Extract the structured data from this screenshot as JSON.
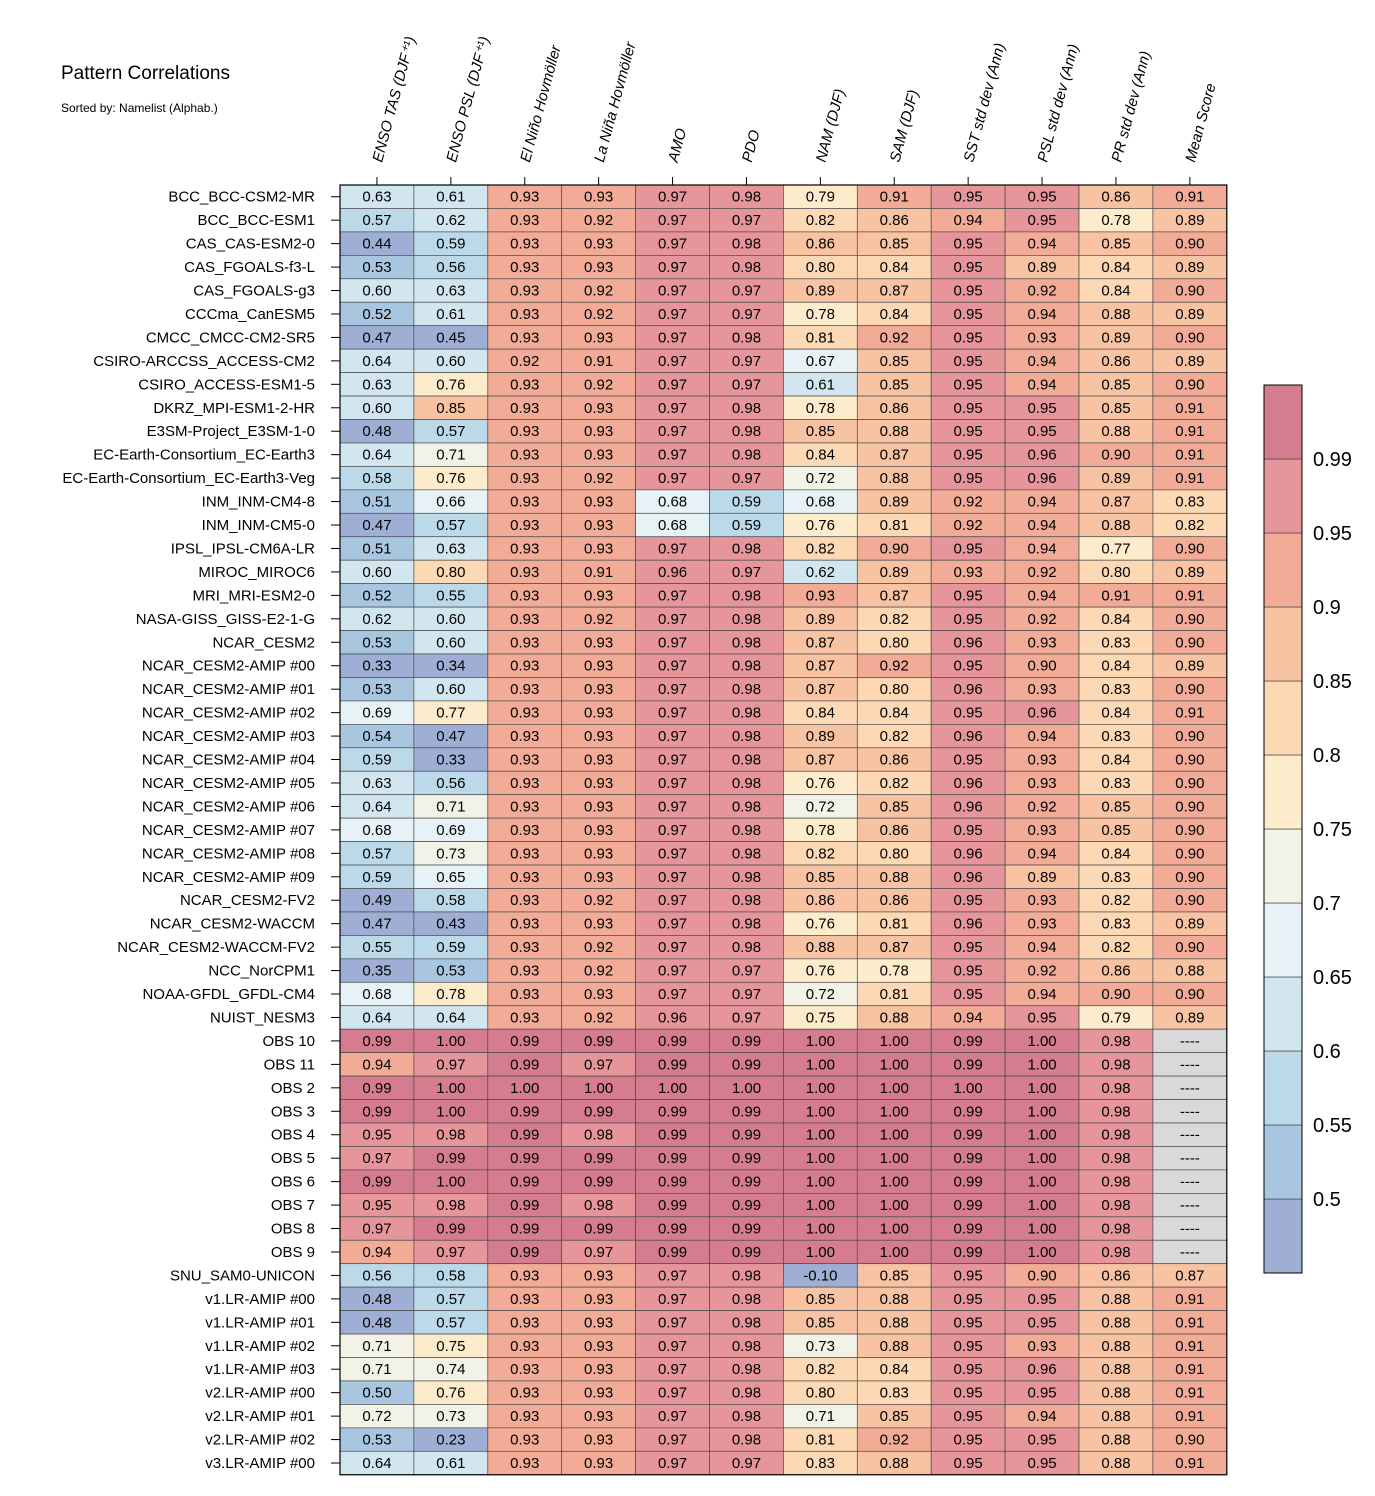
{
  "chart_data": {
    "type": "heatmap",
    "title": "Pattern Correlations",
    "subtitle": "Sorted by: Namelist (Alphab.)",
    "columns": [
      "ENSO TAS (DJF⁺¹)",
      "ENSO PSL (DJF⁺¹)",
      "El Niño Hovmöller",
      "La Niña Hovmöller",
      "AMO",
      "PDO",
      "NAM (DJF)",
      "SAM (DJF)",
      "SST std dev (Ann)",
      "PSL std dev (Ann)",
      "PR std dev (Ann)",
      "Mean Score"
    ],
    "rows": [
      "BCC_BCC-CSM2-MR",
      "BCC_BCC-ESM1",
      "CAS_CAS-ESM2-0",
      "CAS_FGOALS-f3-L",
      "CAS_FGOALS-g3",
      "CCCma_CanESM5",
      "CMCC_CMCC-CM2-SR5",
      "CSIRO-ARCCSS_ACCESS-CM2",
      "CSIRO_ACCESS-ESM1-5",
      "DKRZ_MPI-ESM1-2-HR",
      "E3SM-Project_E3SM-1-0",
      "EC-Earth-Consortium_EC-Earth3",
      "EC-Earth-Consortium_EC-Earth3-Veg",
      "INM_INM-CM4-8",
      "INM_INM-CM5-0",
      "IPSL_IPSL-CM6A-LR",
      "MIROC_MIROC6",
      "MRI_MRI-ESM2-0",
      "NASA-GISS_GISS-E2-1-G",
      "NCAR_CESM2",
      "NCAR_CESM2-AMIP  #00",
      "NCAR_CESM2-AMIP  #01",
      "NCAR_CESM2-AMIP  #02",
      "NCAR_CESM2-AMIP  #03",
      "NCAR_CESM2-AMIP  #04",
      "NCAR_CESM2-AMIP  #05",
      "NCAR_CESM2-AMIP  #06",
      "NCAR_CESM2-AMIP  #07",
      "NCAR_CESM2-AMIP  #08",
      "NCAR_CESM2-AMIP  #09",
      "NCAR_CESM2-FV2",
      "NCAR_CESM2-WACCM",
      "NCAR_CESM2-WACCM-FV2",
      "NCC_NorCPM1",
      "NOAA-GFDL_GFDL-CM4",
      "NUIST_NESM3",
      "OBS 10",
      "OBS 11",
      "OBS 2",
      "OBS 3",
      "OBS 4",
      "OBS 5",
      "OBS 6",
      "OBS 7",
      "OBS 8",
      "OBS 9",
      "SNU_SAM0-UNICON",
      "v1.LR-AMIP  #00",
      "v1.LR-AMIP  #01",
      "v1.LR-AMIP  #02",
      "v1.LR-AMIP  #03",
      "v2.LR-AMIP  #00",
      "v2.LR-AMIP  #01",
      "v2.LR-AMIP  #02",
      "v3.LR-AMIP  #00"
    ],
    "values": [
      [
        "0.63",
        "0.61",
        "0.93",
        "0.93",
        "0.97",
        "0.98",
        "0.79",
        "0.91",
        "0.95",
        "0.95",
        "0.86",
        "0.91"
      ],
      [
        "0.57",
        "0.62",
        "0.93",
        "0.92",
        "0.97",
        "0.97",
        "0.82",
        "0.86",
        "0.94",
        "0.95",
        "0.78",
        "0.89"
      ],
      [
        "0.44",
        "0.59",
        "0.93",
        "0.93",
        "0.97",
        "0.98",
        "0.86",
        "0.85",
        "0.95",
        "0.94",
        "0.85",
        "0.90"
      ],
      [
        "0.53",
        "0.56",
        "0.93",
        "0.93",
        "0.97",
        "0.98",
        "0.80",
        "0.84",
        "0.95",
        "0.89",
        "0.84",
        "0.89"
      ],
      [
        "0.60",
        "0.63",
        "0.93",
        "0.92",
        "0.97",
        "0.97",
        "0.89",
        "0.87",
        "0.95",
        "0.92",
        "0.84",
        "0.90"
      ],
      [
        "0.52",
        "0.61",
        "0.93",
        "0.92",
        "0.97",
        "0.97",
        "0.78",
        "0.84",
        "0.95",
        "0.94",
        "0.88",
        "0.89"
      ],
      [
        "0.47",
        "0.45",
        "0.93",
        "0.93",
        "0.97",
        "0.98",
        "0.81",
        "0.92",
        "0.95",
        "0.93",
        "0.89",
        "0.90"
      ],
      [
        "0.64",
        "0.60",
        "0.92",
        "0.91",
        "0.97",
        "0.97",
        "0.67",
        "0.85",
        "0.95",
        "0.94",
        "0.86",
        "0.89"
      ],
      [
        "0.63",
        "0.76",
        "0.93",
        "0.92",
        "0.97",
        "0.97",
        "0.61",
        "0.85",
        "0.95",
        "0.94",
        "0.85",
        "0.90"
      ],
      [
        "0.60",
        "0.85",
        "0.93",
        "0.93",
        "0.97",
        "0.98",
        "0.78",
        "0.86",
        "0.95",
        "0.95",
        "0.85",
        "0.91"
      ],
      [
        "0.48",
        "0.57",
        "0.93",
        "0.93",
        "0.97",
        "0.98",
        "0.85",
        "0.88",
        "0.95",
        "0.95",
        "0.88",
        "0.91"
      ],
      [
        "0.64",
        "0.71",
        "0.93",
        "0.93",
        "0.97",
        "0.98",
        "0.84",
        "0.87",
        "0.95",
        "0.96",
        "0.90",
        "0.91"
      ],
      [
        "0.58",
        "0.76",
        "0.93",
        "0.92",
        "0.97",
        "0.97",
        "0.72",
        "0.88",
        "0.95",
        "0.96",
        "0.89",
        "0.91"
      ],
      [
        "0.51",
        "0.66",
        "0.93",
        "0.93",
        "0.68",
        "0.59",
        "0.68",
        "0.89",
        "0.92",
        "0.94",
        "0.87",
        "0.83"
      ],
      [
        "0.47",
        "0.57",
        "0.93",
        "0.93",
        "0.68",
        "0.59",
        "0.76",
        "0.81",
        "0.92",
        "0.94",
        "0.88",
        "0.82"
      ],
      [
        "0.51",
        "0.63",
        "0.93",
        "0.93",
        "0.97",
        "0.98",
        "0.82",
        "0.90",
        "0.95",
        "0.94",
        "0.77",
        "0.90"
      ],
      [
        "0.60",
        "0.80",
        "0.93",
        "0.91",
        "0.96",
        "0.97",
        "0.62",
        "0.89",
        "0.93",
        "0.92",
        "0.80",
        "0.89"
      ],
      [
        "0.52",
        "0.55",
        "0.93",
        "0.93",
        "0.97",
        "0.98",
        "0.93",
        "0.87",
        "0.95",
        "0.94",
        "0.91",
        "0.91"
      ],
      [
        "0.62",
        "0.60",
        "0.93",
        "0.92",
        "0.97",
        "0.98",
        "0.89",
        "0.82",
        "0.95",
        "0.92",
        "0.84",
        "0.90"
      ],
      [
        "0.53",
        "0.60",
        "0.93",
        "0.93",
        "0.97",
        "0.98",
        "0.87",
        "0.80",
        "0.96",
        "0.93",
        "0.83",
        "0.90"
      ],
      [
        "0.33",
        "0.34",
        "0.93",
        "0.93",
        "0.97",
        "0.98",
        "0.87",
        "0.92",
        "0.95",
        "0.90",
        "0.84",
        "0.89"
      ],
      [
        "0.53",
        "0.60",
        "0.93",
        "0.93",
        "0.97",
        "0.98",
        "0.87",
        "0.80",
        "0.96",
        "0.93",
        "0.83",
        "0.90"
      ],
      [
        "0.69",
        "0.77",
        "0.93",
        "0.93",
        "0.97",
        "0.98",
        "0.84",
        "0.84",
        "0.95",
        "0.96",
        "0.84",
        "0.91"
      ],
      [
        "0.54",
        "0.47",
        "0.93",
        "0.93",
        "0.97",
        "0.98",
        "0.89",
        "0.82",
        "0.96",
        "0.94",
        "0.83",
        "0.90"
      ],
      [
        "0.59",
        "0.33",
        "0.93",
        "0.93",
        "0.97",
        "0.98",
        "0.87",
        "0.86",
        "0.95",
        "0.93",
        "0.84",
        "0.90"
      ],
      [
        "0.63",
        "0.56",
        "0.93",
        "0.93",
        "0.97",
        "0.98",
        "0.76",
        "0.82",
        "0.96",
        "0.93",
        "0.83",
        "0.90"
      ],
      [
        "0.64",
        "0.71",
        "0.93",
        "0.93",
        "0.97",
        "0.98",
        "0.72",
        "0.85",
        "0.96",
        "0.92",
        "0.85",
        "0.90"
      ],
      [
        "0.68",
        "0.69",
        "0.93",
        "0.93",
        "0.97",
        "0.98",
        "0.78",
        "0.86",
        "0.95",
        "0.93",
        "0.85",
        "0.90"
      ],
      [
        "0.57",
        "0.73",
        "0.93",
        "0.93",
        "0.97",
        "0.98",
        "0.82",
        "0.80",
        "0.96",
        "0.94",
        "0.84",
        "0.90"
      ],
      [
        "0.59",
        "0.65",
        "0.93",
        "0.93",
        "0.97",
        "0.98",
        "0.85",
        "0.88",
        "0.96",
        "0.89",
        "0.83",
        "0.90"
      ],
      [
        "0.49",
        "0.58",
        "0.93",
        "0.92",
        "0.97",
        "0.98",
        "0.86",
        "0.86",
        "0.95",
        "0.93",
        "0.82",
        "0.90"
      ],
      [
        "0.47",
        "0.43",
        "0.93",
        "0.93",
        "0.97",
        "0.98",
        "0.76",
        "0.81",
        "0.96",
        "0.93",
        "0.83",
        "0.89"
      ],
      [
        "0.55",
        "0.59",
        "0.93",
        "0.92",
        "0.97",
        "0.98",
        "0.88",
        "0.87",
        "0.95",
        "0.94",
        "0.82",
        "0.90"
      ],
      [
        "0.35",
        "0.53",
        "0.93",
        "0.92",
        "0.97",
        "0.97",
        "0.76",
        "0.78",
        "0.95",
        "0.92",
        "0.86",
        "0.88"
      ],
      [
        "0.68",
        "0.78",
        "0.93",
        "0.93",
        "0.97",
        "0.97",
        "0.72",
        "0.81",
        "0.95",
        "0.94",
        "0.90",
        "0.90"
      ],
      [
        "0.64",
        "0.64",
        "0.93",
        "0.92",
        "0.96",
        "0.97",
        "0.75",
        "0.88",
        "0.94",
        "0.95",
        "0.79",
        "0.89"
      ],
      [
        "0.99",
        "1.00",
        "0.99",
        "0.99",
        "0.99",
        "0.99",
        "1.00",
        "1.00",
        "0.99",
        "1.00",
        "0.98",
        "----"
      ],
      [
        "0.94",
        "0.97",
        "0.99",
        "0.97",
        "0.99",
        "0.99",
        "1.00",
        "1.00",
        "0.99",
        "1.00",
        "0.98",
        "----"
      ],
      [
        "0.99",
        "1.00",
        "1.00",
        "1.00",
        "1.00",
        "1.00",
        "1.00",
        "1.00",
        "1.00",
        "1.00",
        "0.98",
        "----"
      ],
      [
        "0.99",
        "1.00",
        "0.99",
        "0.99",
        "0.99",
        "0.99",
        "1.00",
        "1.00",
        "0.99",
        "1.00",
        "0.98",
        "----"
      ],
      [
        "0.95",
        "0.98",
        "0.99",
        "0.98",
        "0.99",
        "0.99",
        "1.00",
        "1.00",
        "0.99",
        "1.00",
        "0.98",
        "----"
      ],
      [
        "0.97",
        "0.99",
        "0.99",
        "0.99",
        "0.99",
        "0.99",
        "1.00",
        "1.00",
        "0.99",
        "1.00",
        "0.98",
        "----"
      ],
      [
        "0.99",
        "1.00",
        "0.99",
        "0.99",
        "0.99",
        "0.99",
        "1.00",
        "1.00",
        "0.99",
        "1.00",
        "0.98",
        "----"
      ],
      [
        "0.95",
        "0.98",
        "0.99",
        "0.98",
        "0.99",
        "0.99",
        "1.00",
        "1.00",
        "0.99",
        "1.00",
        "0.98",
        "----"
      ],
      [
        "0.97",
        "0.99",
        "0.99",
        "0.99",
        "0.99",
        "0.99",
        "1.00",
        "1.00",
        "0.99",
        "1.00",
        "0.98",
        "----"
      ],
      [
        "0.94",
        "0.97",
        "0.99",
        "0.97",
        "0.99",
        "0.99",
        "1.00",
        "1.00",
        "0.99",
        "1.00",
        "0.98",
        "----"
      ],
      [
        "0.56",
        "0.58",
        "0.93",
        "0.93",
        "0.97",
        "0.98",
        "-0.10",
        "0.85",
        "0.95",
        "0.90",
        "0.86",
        "0.87"
      ],
      [
        "0.48",
        "0.57",
        "0.93",
        "0.93",
        "0.97",
        "0.98",
        "0.85",
        "0.88",
        "0.95",
        "0.95",
        "0.88",
        "0.91"
      ],
      [
        "0.48",
        "0.57",
        "0.93",
        "0.93",
        "0.97",
        "0.98",
        "0.85",
        "0.88",
        "0.95",
        "0.95",
        "0.88",
        "0.91"
      ],
      [
        "0.71",
        "0.75",
        "0.93",
        "0.93",
        "0.97",
        "0.98",
        "0.73",
        "0.88",
        "0.95",
        "0.93",
        "0.88",
        "0.91"
      ],
      [
        "0.71",
        "0.74",
        "0.93",
        "0.93",
        "0.97",
        "0.98",
        "0.82",
        "0.84",
        "0.95",
        "0.96",
        "0.88",
        "0.91"
      ],
      [
        "0.50",
        "0.76",
        "0.93",
        "0.93",
        "0.97",
        "0.98",
        "0.80",
        "0.83",
        "0.95",
        "0.95",
        "0.88",
        "0.91"
      ],
      [
        "0.72",
        "0.73",
        "0.93",
        "0.93",
        "0.97",
        "0.98",
        "0.71",
        "0.85",
        "0.95",
        "0.94",
        "0.88",
        "0.91"
      ],
      [
        "0.53",
        "0.23",
        "0.93",
        "0.93",
        "0.97",
        "0.98",
        "0.81",
        "0.92",
        "0.95",
        "0.95",
        "0.88",
        "0.90"
      ],
      [
        "0.64",
        "0.61",
        "0.93",
        "0.93",
        "0.97",
        "0.97",
        "0.83",
        "0.88",
        "0.95",
        "0.95",
        "0.88",
        "0.91"
      ]
    ],
    "missing_label": "----",
    "missing_color": "#d9d9d9",
    "colorbar": {
      "boundaries": [
        0.5,
        0.55,
        0.6,
        0.65,
        0.7,
        0.75,
        0.8,
        0.85,
        0.9,
        0.95,
        0.99
      ],
      "tick_labels": [
        "0.5",
        "0.55",
        "0.6",
        "0.65",
        "0.7",
        "0.75",
        "0.8",
        "0.85",
        "0.9",
        "0.95",
        "0.99"
      ],
      "colors": [
        "#9eaed4",
        "#a9c6e0",
        "#bcd9ea",
        "#d2e6f0",
        "#e6f2f6",
        "#f3f2e6",
        "#fdeccb",
        "#fcd9b4",
        "#f8c3a2",
        "#f1ab96",
        "#e6959a",
        "#d57d8f"
      ]
    }
  }
}
